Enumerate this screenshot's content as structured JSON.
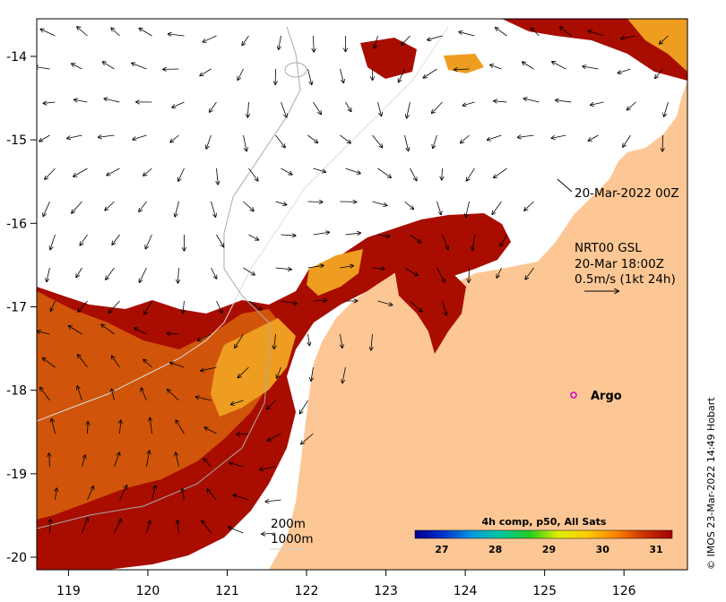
{
  "map": {
    "lon_ticks": [
      "119",
      "120",
      "121",
      "122",
      "123",
      "124",
      "125",
      "126"
    ],
    "lat_ticks": [
      "-14",
      "-15",
      "-16",
      "-17",
      "-18",
      "-19",
      "-20"
    ],
    "lon_range": [
      118.6,
      126.8
    ],
    "lat_range": [
      -20.15,
      -13.55
    ]
  },
  "annotations": {
    "time_label": "20-Mar-2022 00Z",
    "current_product": "NRT00 GSL",
    "current_time": "20-Mar 18:00Z",
    "scale_label": "0.5m/s (1kt 24h)",
    "argo_label": "Argo",
    "iso_200": "200m",
    "iso_1000": "1000m",
    "credit": "© IMOS 23-Mar-2022 14:49 Hobart"
  },
  "colorbar": {
    "title": "4h comp, p50, All Sats",
    "ticks": [
      "27",
      "28",
      "29",
      "30",
      "31"
    ],
    "range": [
      26.5,
      31.3
    ],
    "colors": [
      "#00008b",
      "#0033cc",
      "#0099dd",
      "#00c8a0",
      "#22cc22",
      "#ddee00",
      "#ffcc00",
      "#ff8800",
      "#cc3300",
      "#a00000"
    ]
  },
  "colors": {
    "land": "#fdc795",
    "sst_hot": "#a80d00",
    "sst_mid": "#d0550a",
    "sst_warm": "#ee9d20",
    "argo": "#cc00cc"
  }
}
